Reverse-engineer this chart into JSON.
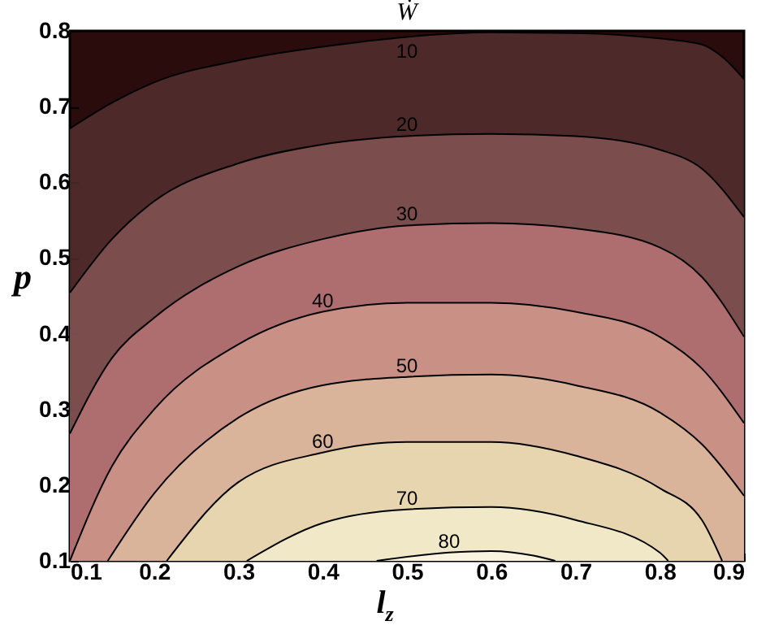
{
  "chart_data": {
    "type": "area",
    "title": "Ẇ",
    "xlabel": "l$_{z}$",
    "ylabel": "p",
    "xlim": [
      0.1,
      0.9
    ],
    "ylim": [
      0.1,
      0.8
    ],
    "xticks": [
      0.1,
      0.2,
      0.3,
      0.4,
      0.5,
      0.6,
      0.7,
      0.8,
      0.9
    ],
    "yticks": [
      0.1,
      0.2,
      0.3,
      0.4,
      0.5,
      0.6,
      0.7,
      0.8
    ],
    "grid": false,
    "series": [
      {
        "name": "10",
        "color": "#5c3636",
        "x": [
          0.1,
          0.15,
          0.2,
          0.3,
          0.4,
          0.5,
          0.6,
          0.7,
          0.8,
          0.85,
          0.875,
          0.9
        ],
        "values": [
          0.671,
          0.705,
          0.732,
          0.761,
          0.779,
          0.792,
          0.798,
          0.797,
          0.79,
          0.782,
          0.765,
          0.736
        ]
      },
      {
        "name": "20",
        "color": "#8e5c5c",
        "x": [
          0.1,
          0.15,
          0.2,
          0.3,
          0.4,
          0.5,
          0.6,
          0.7,
          0.8,
          0.85,
          0.9
        ],
        "values": [
          0.454,
          0.525,
          0.575,
          0.625,
          0.65,
          0.661,
          0.664,
          0.661,
          0.643,
          0.618,
          0.554
        ]
      },
      {
        "name": "30",
        "color": "#c47c7e",
        "x": [
          0.1,
          0.15,
          0.2,
          0.3,
          0.4,
          0.5,
          0.6,
          0.7,
          0.8,
          0.85,
          0.9
        ],
        "values": [
          0.268,
          0.368,
          0.421,
          0.489,
          0.525,
          0.543,
          0.546,
          0.539,
          0.514,
          0.475,
          0.396
        ]
      },
      {
        "name": "40",
        "color": "#d4a08f",
        "x": [
          0.1,
          0.15,
          0.2,
          0.3,
          0.4,
          0.5,
          0.6,
          0.7,
          0.8,
          0.85,
          0.9
        ],
        "values": [
          0.1,
          0.225,
          0.3,
          0.386,
          0.429,
          0.441,
          0.441,
          0.429,
          0.396,
          0.354,
          0.282
        ]
      },
      {
        "name": "50",
        "color": "#e0c3a3",
        "x": [
          0.145,
          0.2,
          0.3,
          0.4,
          0.5,
          0.6,
          0.7,
          0.8,
          0.85,
          0.9
        ],
        "values": [
          0.1,
          0.189,
          0.289,
          0.332,
          0.343,
          0.346,
          0.332,
          0.296,
          0.254,
          0.186
        ]
      },
      {
        "name": "60",
        "color": "#ebe3b6",
        "x": [
          0.215,
          0.3,
          0.4,
          0.5,
          0.6,
          0.7,
          0.8,
          0.85,
          0.874
        ],
        "values": [
          0.1,
          0.204,
          0.243,
          0.257,
          0.257,
          0.239,
          0.196,
          0.154,
          0.1
        ]
      },
      {
        "name": "70",
        "color": "#f4efd0",
        "x": [
          0.31,
          0.4,
          0.5,
          0.6,
          0.7,
          0.8,
          0.81
        ],
        "values": [
          0.1,
          0.15,
          0.168,
          0.171,
          0.154,
          0.111,
          0.1
        ]
      },
      {
        "name": "80",
        "color": "#fcf8ea",
        "x": [
          0.464,
          0.55,
          0.6,
          0.65,
          0.676
        ],
        "values": [
          0.1,
          0.111,
          0.113,
          0.107,
          0.1
        ]
      }
    ]
  }
}
